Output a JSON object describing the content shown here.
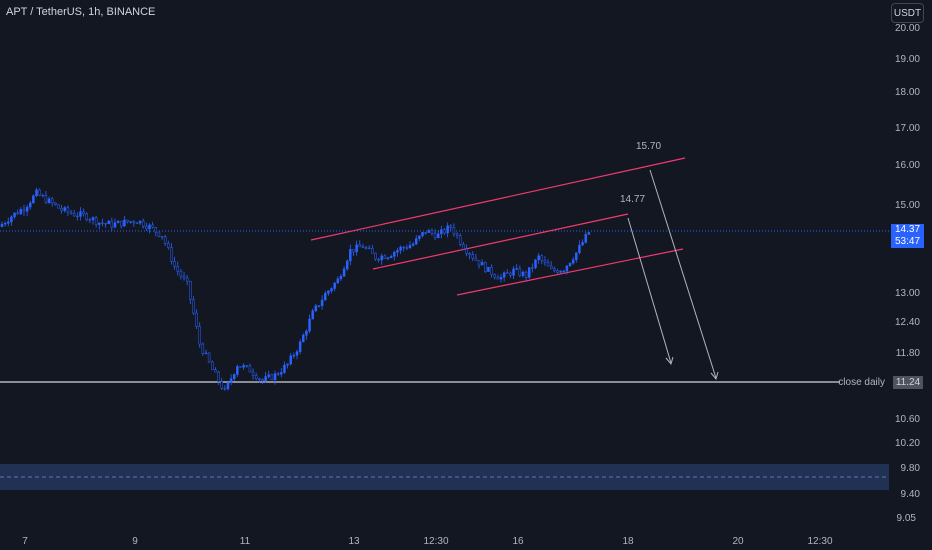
{
  "header": {
    "title": "APT / TetherUS, 1h, BINANCE",
    "currency_button": "USDT"
  },
  "price_axis": {
    "labels": [
      "20.00",
      "19.00",
      "18.00",
      "17.00",
      "16.00",
      "15.00",
      "13.00",
      "12.40",
      "11.80",
      "10.60",
      "10.20",
      "9.80",
      "9.40",
      "9.05"
    ]
  },
  "time_axis": {
    "labels": [
      "7",
      "9",
      "11",
      "13",
      "12:30",
      "16",
      "18",
      "20",
      "12:30"
    ]
  },
  "current_price": {
    "price": "14.37",
    "countdown": "53:47"
  },
  "close_daily": {
    "label": "close daily",
    "price": "11.24"
  },
  "annotations": {
    "upper_target": "15.70",
    "lower_target": "14.77"
  },
  "colors": {
    "background": "#131722",
    "candle_up": "#2962ff",
    "candle_down": "#2962ff",
    "channel": "#f23a6e",
    "level_line": "#d1d4dc",
    "zone": "#283f70"
  },
  "chart_data": {
    "type": "candlestick",
    "symbol": "APT / TetherUS",
    "interval": "1h",
    "exchange": "BINANCE",
    "ylim": [
      9.05,
      20.0
    ],
    "log_scale": true,
    "x_ticks": [
      "7",
      "9",
      "11",
      "13",
      "12:30",
      "16",
      "18",
      "20",
      "12:30"
    ],
    "close_series": [
      14.5,
      14.75,
      14.95,
      15.3,
      15.1,
      14.9,
      14.8,
      14.75,
      14.6,
      14.55,
      14.6,
      14.65,
      14.5,
      14.3,
      13.6,
      13.2,
      12.0,
      11.5,
      11.1,
      11.6,
      11.5,
      11.3,
      11.4,
      11.6,
      12.0,
      12.6,
      13.0,
      13.3,
      13.95,
      14.05,
      13.8,
      13.85,
      14.0,
      14.1,
      14.4,
      14.3,
      14.5,
      14.05,
      13.75,
      13.5,
      13.35,
      13.5,
      13.4,
      13.8,
      13.5,
      13.55,
      13.9,
      14.37
    ],
    "levels": [
      {
        "name": "close daily",
        "price": 11.24
      },
      {
        "name": "current",
        "price": 14.37
      }
    ],
    "zone": {
      "from": 9.5,
      "to": 9.9
    },
    "channel_lines": [
      {
        "from_price": 14.0,
        "to_price": 16.05
      },
      {
        "from_price": 13.6,
        "to_price": 14.75
      },
      {
        "from_price": 13.0,
        "to_price": 14.15
      }
    ],
    "targets": [
      "15.70",
      "14.77"
    ]
  }
}
